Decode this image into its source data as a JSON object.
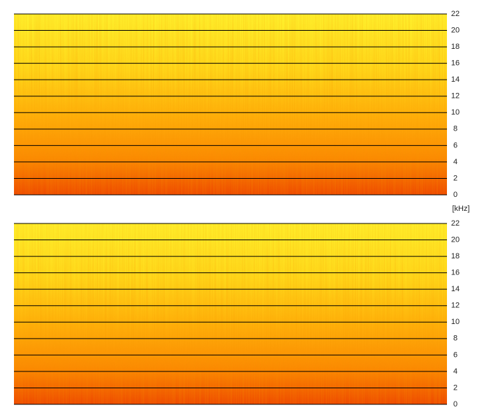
{
  "chart_data": [
    {
      "type": "spectrogram",
      "ylim": [
        0,
        22
      ],
      "yticks": [
        0,
        2,
        4,
        6,
        8,
        10,
        12,
        14,
        16,
        18,
        20,
        22
      ],
      "grid": true,
      "ylabel": "[kHz]"
    },
    {
      "type": "spectrogram",
      "ylim": [
        0,
        22
      ],
      "yticks": [
        0,
        2,
        4,
        6,
        8,
        10,
        12,
        14,
        16,
        18,
        20,
        22
      ],
      "grid": true
    }
  ]
}
